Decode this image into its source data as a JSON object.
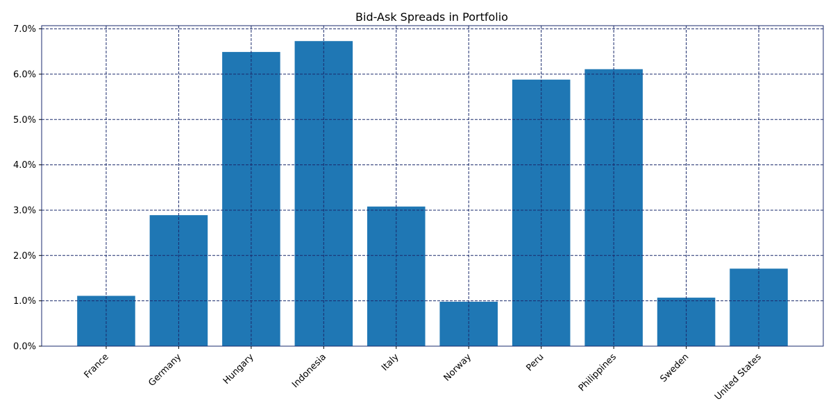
{
  "chart_data": {
    "type": "bar",
    "title": "Bid-Ask Spreads in Portfolio",
    "xlabel": "",
    "ylabel": "",
    "categories": [
      "France",
      "Germany",
      "Hungary",
      "Indonesia",
      "Italy",
      "Norway",
      "Peru",
      "Philippines",
      "Sweden",
      "United States"
    ],
    "values": [
      0.0111,
      0.0289,
      0.0649,
      0.0673,
      0.0308,
      0.0098,
      0.0588,
      0.0611,
      0.0107,
      0.0171
    ],
    "ylim": [
      0,
      0.0707
    ],
    "yticks": [
      0.0,
      0.01,
      0.02,
      0.03,
      0.04,
      0.05,
      0.06,
      0.07
    ],
    "ytick_labels": [
      "0.0%",
      "1.0%",
      "2.0%",
      "3.0%",
      "4.0%",
      "5.0%",
      "6.0%",
      "7.0%"
    ],
    "grid": true,
    "legend": "none",
    "colors": {
      "bar": "#1f77b4",
      "grid": "#1a2a6c",
      "axes": "#1a2a6c"
    }
  }
}
